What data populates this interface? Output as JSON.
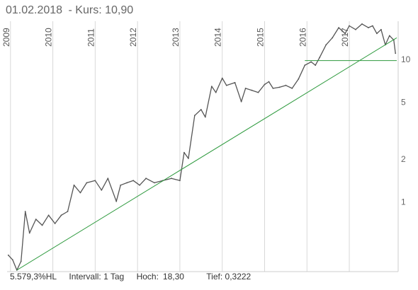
{
  "header": {
    "date": "01.02.2018",
    "kurs": "- Kurs: 10,90"
  },
  "footer": {
    "perf": "5.579,3%HL",
    "intervall": "Intervall: 1 Tag",
    "hoch_label": "Hoch:",
    "hoch_value": "18,30",
    "tief": "Tief: 0,3222"
  },
  "colors": {
    "price": "#555555",
    "trend": "#2e9a3e",
    "grid": "#d8d8d8"
  },
  "chart_data": {
    "type": "line",
    "title": "01.02.2018 - Kurs: 10,90",
    "y_scale": "log",
    "x_ticks": [
      "2009",
      "2010",
      "2011",
      "2012",
      "2013",
      "2014",
      "2015",
      "2016",
      "2017"
    ],
    "x_range": [
      2008.92,
      2018.12
    ],
    "y_ticks": [
      1,
      2,
      5,
      10
    ],
    "ylim": [
      0.3222,
      18.3
    ],
    "series": [
      {
        "x": [
          2008.95,
          2009.05,
          2009.15,
          2009.25,
          2009.35,
          2009.45,
          2009.6,
          2009.75,
          2009.9,
          2010.05,
          2010.2,
          2010.35,
          2010.5,
          2010.65,
          2010.8,
          2011.0,
          2011.15,
          2011.3,
          2011.5,
          2011.6,
          2011.75,
          2011.9,
          2012.05,
          2012.2,
          2012.4,
          2012.6,
          2012.8,
          2013.0,
          2013.1,
          2013.2,
          2013.35,
          2013.5,
          2013.6,
          2013.75,
          2013.85,
          2014.0,
          2014.1,
          2014.3,
          2014.45,
          2014.55,
          2014.7,
          2014.85,
          2015.0,
          2015.1,
          2015.2,
          2015.35,
          2015.5,
          2015.65,
          2015.8,
          2015.95,
          2016.1,
          2016.2,
          2016.3,
          2016.45,
          2016.6,
          2016.75,
          2016.9,
          2017.0,
          2017.15,
          2017.3,
          2017.45,
          2017.55,
          2017.65,
          2017.75,
          2017.85,
          2017.95,
          2018.05,
          2018.09
        ],
        "y": [
          0.42,
          0.39,
          0.33,
          0.38,
          0.85,
          0.6,
          0.75,
          0.68,
          0.8,
          0.7,
          0.8,
          0.85,
          1.3,
          1.15,
          1.35,
          1.4,
          1.2,
          1.45,
          1.0,
          1.3,
          1.35,
          1.4,
          1.3,
          1.45,
          1.35,
          1.4,
          1.45,
          1.4,
          2.2,
          2.0,
          4.0,
          4.4,
          3.9,
          6.4,
          5.8,
          7.3,
          6.5,
          6.8,
          5.0,
          6.2,
          6.0,
          5.8,
          6.6,
          6.9,
          6.2,
          6.3,
          6.5,
          6.2,
          7.2,
          9.0,
          9.5,
          9.0,
          10.2,
          12.5,
          14.0,
          16.5,
          15.0,
          17.0,
          16.0,
          17.5,
          16.5,
          17.0,
          15.0,
          16.0,
          12.5,
          14.5,
          13.5,
          10.9
        ]
      }
    ],
    "lines": [
      {
        "from": [
          2009.15,
          0.33
        ],
        "to": [
          2018.12,
          14.0
        ]
      },
      {
        "from": [
          2015.95,
          9.7
        ],
        "to": [
          2018.12,
          9.7
        ]
      }
    ]
  }
}
